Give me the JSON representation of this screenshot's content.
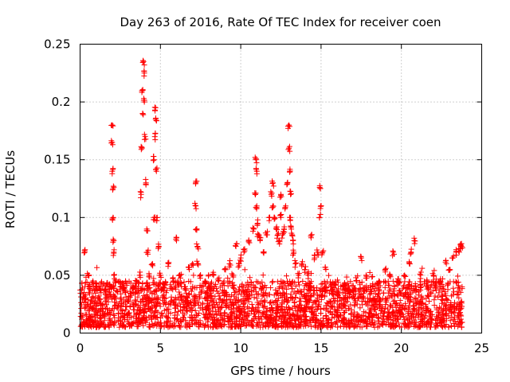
{
  "chart_data": {
    "type": "scatter",
    "title": "Day 263 of 2016, Rate Of TEC Index for receiver coen",
    "xlabel": "GPS time / hours",
    "ylabel": "ROTI / TECUs",
    "xlim": [
      0,
      25
    ],
    "ylim": [
      0,
      0.25
    ],
    "grid": true,
    "marker": "plus",
    "marker_color": "#ff0000",
    "xticks": [
      0,
      5,
      10,
      15,
      20,
      25
    ],
    "xtick_labels": [
      "0",
      "5",
      "10",
      "15",
      "20",
      "25"
    ],
    "yticks": [
      0,
      0.05,
      0.1,
      0.15,
      0.2,
      0.25
    ],
    "ytick_labels": [
      "0",
      "0.05",
      "0.1",
      "0.15",
      "0.2",
      "0.25"
    ],
    "series": [
      {
        "name": "ROTI",
        "x": [
          0.3,
          0.3,
          0.5,
          0.8,
          1.0,
          1.3,
          1.6,
          1.9,
          2.0,
          2.0,
          2.0,
          2.05,
          2.05,
          2.1,
          2.1,
          2.1,
          2.15,
          2.2,
          2.5,
          2.8,
          3.0,
          3.3,
          3.5,
          3.7,
          3.8,
          3.85,
          3.9,
          3.9,
          3.95,
          4.0,
          4.0,
          4.05,
          4.1,
          4.15,
          4.2,
          4.3,
          4.5,
          4.6,
          4.6,
          4.65,
          4.7,
          4.7,
          4.75,
          4.8,
          4.9,
          5.0,
          5.2,
          5.5,
          5.8,
          6.0,
          6.2,
          6.5,
          6.8,
          7.0,
          7.2,
          7.2,
          7.25,
          7.3,
          7.3,
          7.5,
          7.8,
          8.0,
          8.3,
          8.6,
          9.0,
          9.3,
          9.5,
          9.7,
          9.9,
          10.0,
          10.2,
          10.5,
          10.8,
          10.9,
          10.95,
          11.0,
          11.0,
          11.05,
          11.1,
          11.2,
          11.4,
          11.6,
          11.8,
          11.9,
          12.0,
          12.0,
          12.1,
          12.2,
          12.3,
          12.4,
          12.5,
          12.5,
          12.6,
          12.7,
          12.8,
          12.9,
          13.0,
          13.0,
          13.05,
          13.1,
          13.1,
          13.15,
          13.2,
          13.25,
          13.3,
          13.4,
          13.6,
          13.8,
          14.0,
          14.2,
          14.4,
          14.6,
          14.8,
          14.9,
          14.95,
          15.0,
          15.1,
          15.3,
          15.6,
          16.0,
          16.4,
          16.8,
          17.2,
          17.5,
          17.8,
          18.2,
          18.6,
          19.0,
          19.3,
          19.5,
          19.8,
          20.2,
          20.5,
          20.6,
          20.8,
          21.2,
          21.6,
          22.0,
          22.4,
          22.8,
          23.0,
          23.2,
          23.4,
          23.6,
          23.7,
          23.75
        ],
        "y": [
          0.07,
          0.03,
          0.05,
          0.045,
          0.04,
          0.035,
          0.03,
          0.04,
          0.18,
          0.165,
          0.14,
          0.125,
          0.1,
          0.08,
          0.07,
          0.05,
          0.03,
          0.045,
          0.04,
          0.035,
          0.03,
          0.04,
          0.045,
          0.05,
          0.12,
          0.16,
          0.19,
          0.21,
          0.235,
          0.225,
          0.2,
          0.17,
          0.13,
          0.09,
          0.07,
          0.05,
          0.06,
          0.1,
          0.15,
          0.17,
          0.195,
          0.185,
          0.14,
          0.1,
          0.075,
          0.05,
          0.04,
          0.06,
          0.045,
          0.08,
          0.05,
          0.04,
          0.055,
          0.06,
          0.13,
          0.11,
          0.09,
          0.075,
          0.06,
          0.05,
          0.045,
          0.04,
          0.05,
          0.045,
          0.055,
          0.06,
          0.05,
          0.075,
          0.06,
          0.065,
          0.07,
          0.08,
          0.09,
          0.12,
          0.15,
          0.14,
          0.11,
          0.095,
          0.085,
          0.08,
          0.07,
          0.085,
          0.1,
          0.12,
          0.13,
          0.11,
          0.1,
          0.09,
          0.085,
          0.08,
          0.12,
          0.1,
          0.085,
          0.09,
          0.11,
          0.13,
          0.18,
          0.16,
          0.14,
          0.12,
          0.1,
          0.09,
          0.085,
          0.08,
          0.07,
          0.06,
          0.05,
          0.06,
          0.055,
          0.05,
          0.085,
          0.065,
          0.07,
          0.1,
          0.125,
          0.11,
          0.07,
          0.055,
          0.04,
          0.035,
          0.04,
          0.035,
          0.045,
          0.065,
          0.05,
          0.04,
          0.045,
          0.055,
          0.05,
          0.07,
          0.045,
          0.05,
          0.06,
          0.07,
          0.08,
          0.05,
          0.045,
          0.05,
          0.045,
          0.06,
          0.055,
          0.065,
          0.07,
          0.07,
          0.075,
          0.075
        ],
        "band": {
          "description": "dense baseline cloud spanning the full time range",
          "x_range": [
            0,
            23.8
          ],
          "y_min": 0.005,
          "y_max_typical": 0.045
        }
      }
    ]
  }
}
